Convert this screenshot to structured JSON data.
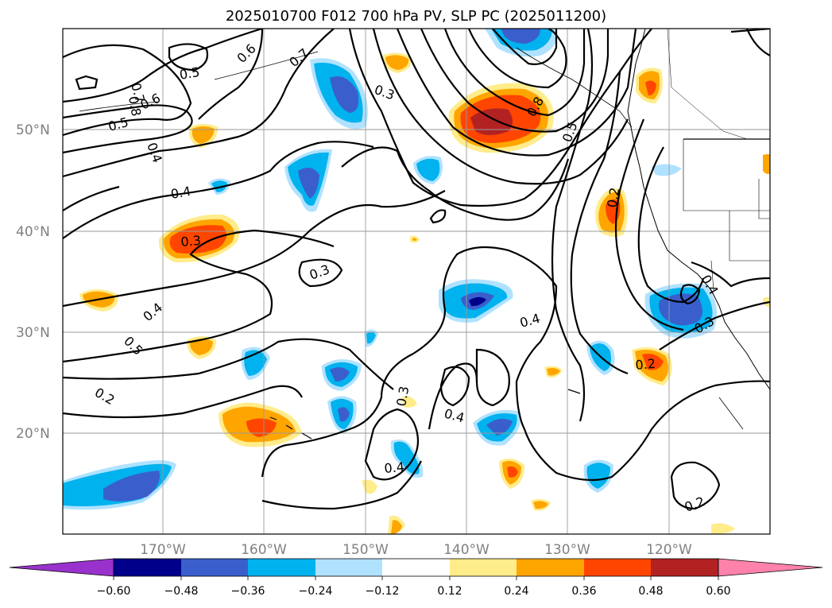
{
  "title": "2025010700 F012 700 hPa PV, SLP PC (2025011200)",
  "lat_labels": [
    "50°N",
    "40°N",
    "30°N",
    "20°N"
  ],
  "lon_labels": [
    "170°W",
    "160°W",
    "150°W",
    "140°W",
    "130°W",
    "120°W"
  ],
  "colorbar": {
    "levels": [
      "−0.60",
      "−0.48",
      "−0.36",
      "−0.24",
      "−0.12",
      "0.12",
      "0.24",
      "0.36",
      "0.48",
      "0.60"
    ],
    "colors": [
      "#9932cc",
      "#00008b",
      "#3a5fcd",
      "#00b2ee",
      "#b0e2ff",
      "#ffffff",
      "#ffec8b",
      "#ffa500",
      "#ff4500",
      "#b22222",
      "#ff82ab"
    ]
  },
  "contour_labels": {
    "c1": "0.7",
    "c2": "0.8",
    "c3": "0.6",
    "c4": "0.5",
    "c5": "0.4",
    "c6": "0.5",
    "c7": "0.6",
    "c8": "0.7",
    "c9": "0.3",
    "c10": "0.8",
    "c11": "0.5",
    "c12": "0.4",
    "c13": "0.3",
    "c14": "0.3",
    "c15": "0.4",
    "c16": "0.5",
    "c17": "0.2",
    "c18": "0.2",
    "c19": "0.4",
    "c20": "0.3",
    "c21": "0.4",
    "c22": "0.4",
    "c23": "0.2",
    "c24": "0.2",
    "c25": "0.3",
    "c26": "0.4"
  }
}
